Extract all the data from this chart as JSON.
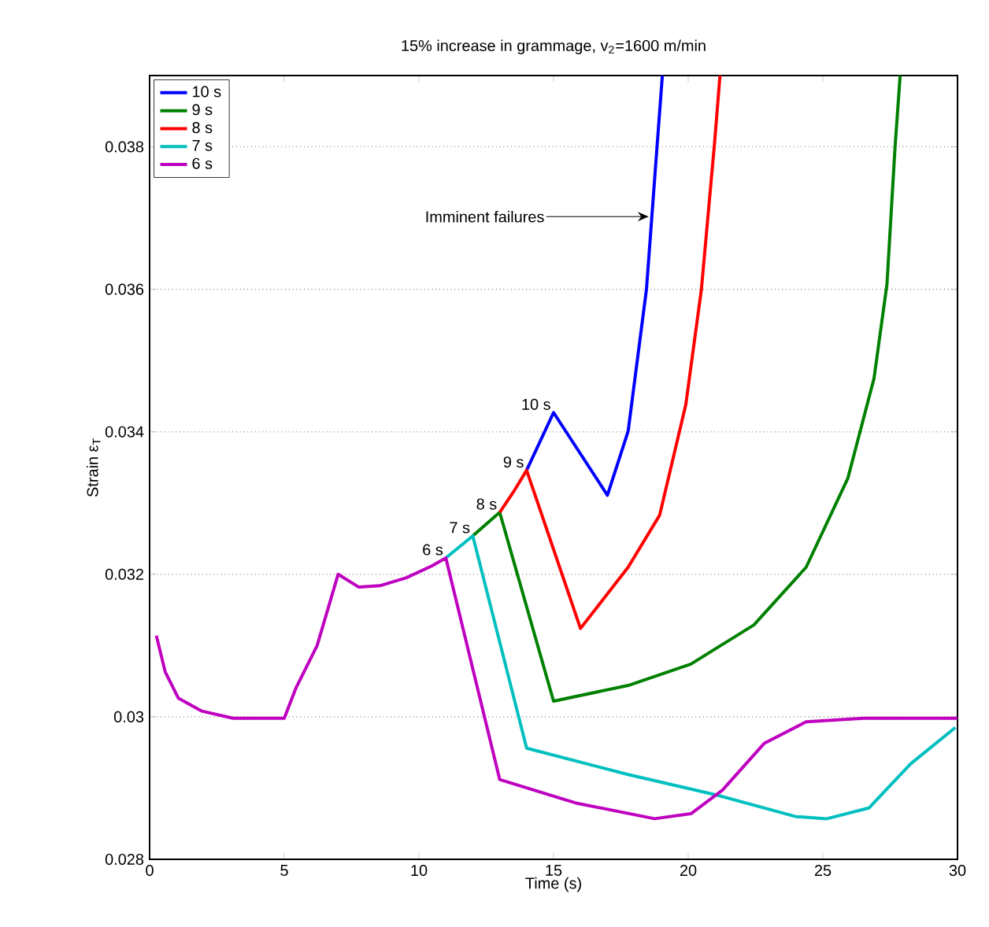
{
  "chart_data": {
    "type": "line",
    "title": "15% increase in grammage, v$_{2}$=1600 m/min",
    "xlabel": "Time (s)",
    "ylabel": "Strain  ε$_{T}$",
    "xlim": [
      0,
      30
    ],
    "ylim": [
      0.028,
      0.039
    ],
    "xticks": [
      0,
      5,
      10,
      15,
      20,
      25,
      30
    ],
    "yticks": [
      0.028,
      0.03,
      0.032,
      0.034,
      0.036,
      0.038
    ],
    "grid": "y",
    "legend": "top left",
    "line_style": "solid",
    "marker": "none",
    "series": [
      {
        "name": "10 s",
        "color": "#0000ff",
        "x": [
          14.0,
          15.0,
          17.0,
          17.77,
          18.45,
          18.84,
          19.04
        ],
        "values": [
          0.03346,
          0.03427,
          0.03311,
          0.03401,
          0.036,
          0.03799,
          0.039
        ]
      },
      {
        "name": "9 s",
        "color": "#008000",
        "x": [
          12.0,
          13.0,
          15.0,
          17.77,
          20.1,
          22.44,
          24.38,
          25.93,
          26.9,
          27.38,
          27.68,
          27.87
        ],
        "values": [
          0.03254,
          0.03287,
          0.03022,
          0.03044,
          0.03074,
          0.03129,
          0.0321,
          0.03335,
          0.03475,
          0.03607,
          0.03799,
          0.039
        ]
      },
      {
        "name": "8 s",
        "color": "#ff0000",
        "x": [
          13.0,
          13.5,
          14.0,
          16.0,
          17.77,
          18.94,
          19.91,
          20.49,
          20.98,
          21.18
        ],
        "values": [
          0.03287,
          0.03315,
          0.03346,
          0.03124,
          0.0321,
          0.03283,
          0.03438,
          0.036,
          0.03806,
          0.039
        ]
      },
      {
        "name": "7 s",
        "color": "#00bfbf",
        "x": [
          11.0,
          12.0,
          14.0,
          17.77,
          21.08,
          23.99,
          25.15,
          26.71,
          28.26,
          29.92
        ],
        "values": [
          0.03223,
          0.03254,
          0.02956,
          0.02919,
          0.0289,
          0.0286,
          0.02857,
          0.02872,
          0.02934,
          0.02985
        ]
      },
      {
        "name": "6 s",
        "color": "#bf00bf",
        "x": [
          0.25,
          0.58,
          1.07,
          1.94,
          3.1,
          5.0,
          5.44,
          6.22,
          7.0,
          7.77,
          8.55,
          9.52,
          10.49,
          11.0,
          13.0,
          15.83,
          18.75,
          20.1,
          21.27,
          22.83,
          24.38,
          26.5,
          30.0
        ],
        "values": [
          0.03114,
          0.03063,
          0.03026,
          0.03008,
          0.02998,
          0.02998,
          0.03041,
          0.031,
          0.032,
          0.03182,
          0.03184,
          0.03195,
          0.03212,
          0.03223,
          0.02912,
          0.02879,
          0.02857,
          0.02864,
          0.02897,
          0.02963,
          0.02993,
          0.02998,
          0.02998
        ]
      }
    ],
    "annotations": [
      {
        "text": "10 s",
        "x": 15,
        "y": 0.03427
      },
      {
        "text": "9 s",
        "x": 14,
        "y": 0.03346
      },
      {
        "text": "8 s",
        "x": 13,
        "y": 0.03287
      },
      {
        "text": "7 s",
        "x": 12,
        "y": 0.03254
      },
      {
        "text": "6 s",
        "x": 11,
        "y": 0.03223
      },
      {
        "text": "Imminent failures",
        "x": 18.65,
        "y": 0.03702
      }
    ]
  }
}
